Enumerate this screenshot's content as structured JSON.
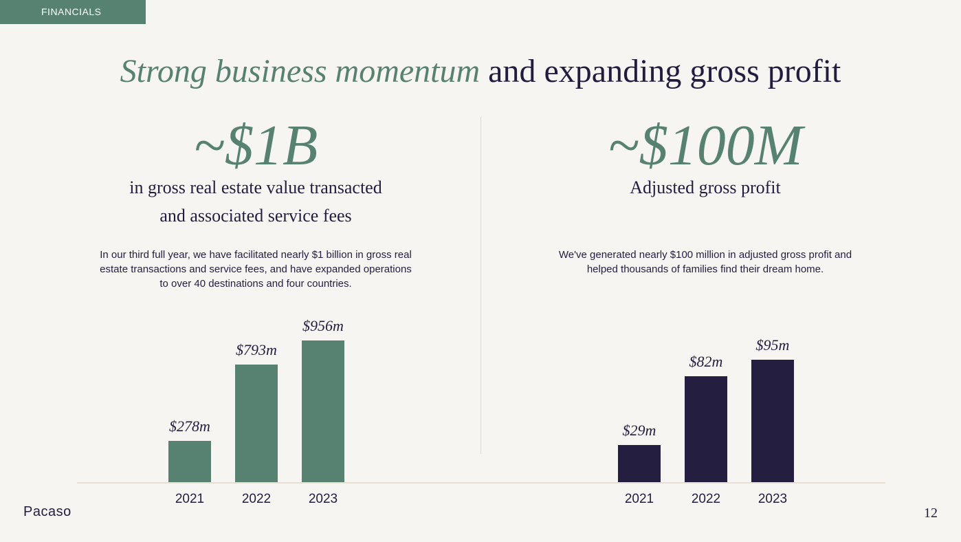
{
  "section_tag": "FINANCIALS",
  "title": {
    "accent": "Strong business momentum",
    "rest": " and expanding gross profit"
  },
  "left": {
    "big_number": "~$1B",
    "subtitle_line1": "in gross real estate value transacted",
    "subtitle_line2": "and associated service fees",
    "body_line1": "In our third full year, we have facilitated nearly $1 billion in gross real",
    "body_line2": "estate transactions and service fees, and have expanded operations",
    "body_line3": "to over 40 destinations and four countries."
  },
  "right": {
    "big_number": "~$100M",
    "subtitle_line1": "Adjusted gross profit",
    "body_line1": "We've generated nearly $100 million in adjusted gross profit and",
    "body_line2": "helped thousands of families find their dream home."
  },
  "chart_data": [
    {
      "type": "bar",
      "categories": [
        "2021",
        "2022",
        "2023"
      ],
      "values": [
        278,
        793,
        956
      ],
      "value_labels": [
        "$278m",
        "$793m",
        "$956m"
      ],
      "ylim": [
        0,
        956
      ],
      "color": "#578170"
    },
    {
      "type": "bar",
      "categories": [
        "2021",
        "2022",
        "2023"
      ],
      "values": [
        29,
        82,
        95
      ],
      "value_labels": [
        "$29m",
        "$82m",
        "$95m"
      ],
      "ylim": [
        0,
        95
      ],
      "color": "#241f40"
    }
  ],
  "footer": {
    "logo": "Pacaso",
    "page_number": "12"
  }
}
